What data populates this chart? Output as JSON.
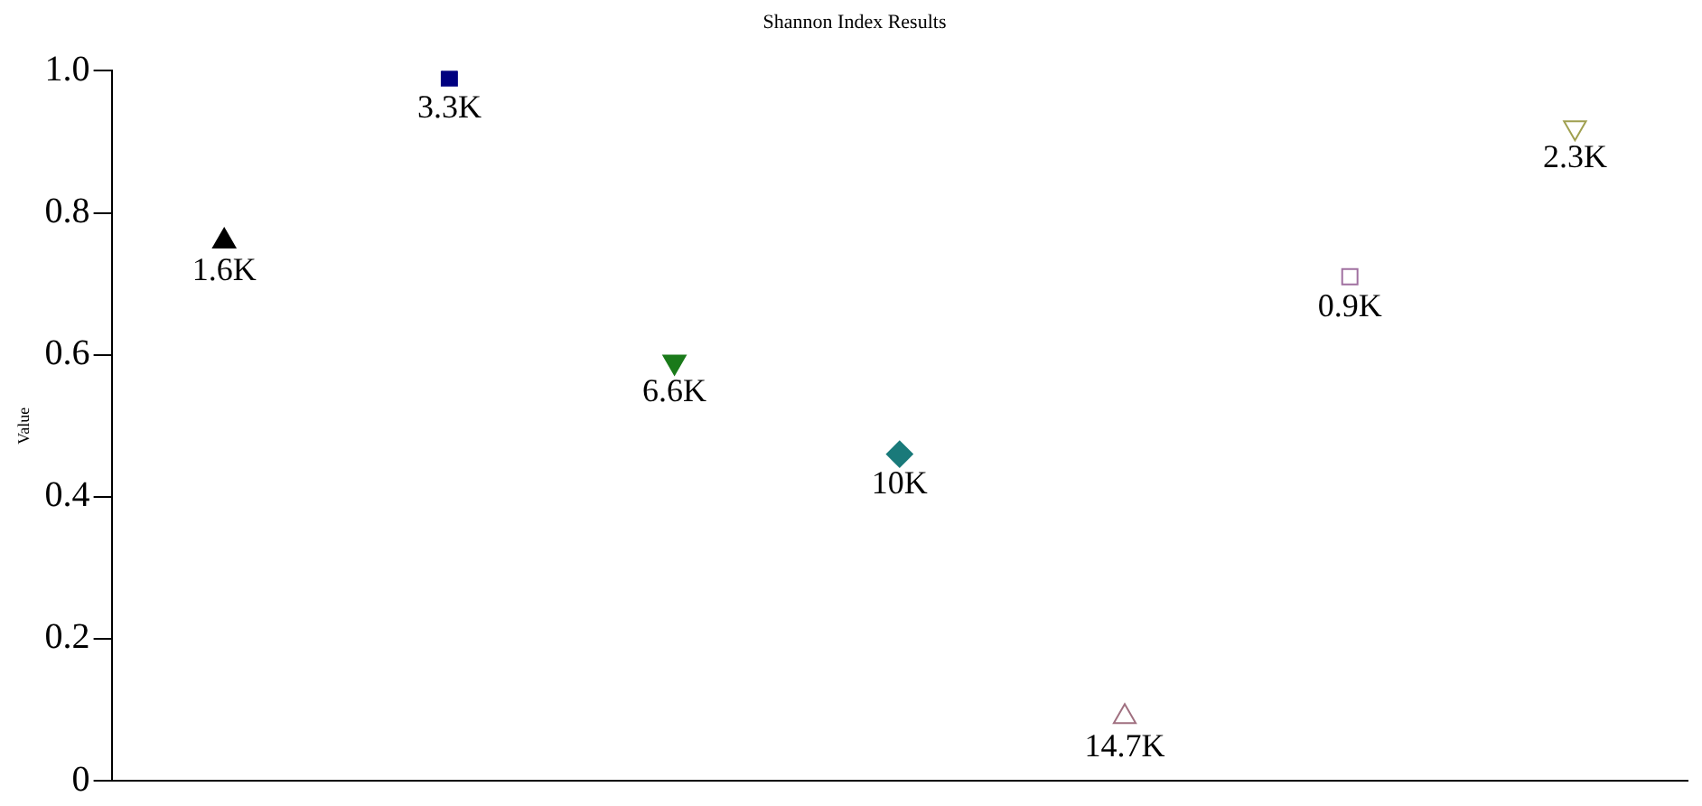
{
  "chart_data": {
    "type": "scatter",
    "title": "Shannon Index Results",
    "ylabel": "Value",
    "categories": [
      null,
      null,
      null,
      null,
      null,
      null,
      null
    ],
    "ylim": [
      0,
      1.0
    ],
    "yticks": [
      0,
      {
        "value": 0.2,
        "label": "0.2"
      },
      {
        "value": 0.4,
        "label": "0.4"
      },
      {
        "value": 0.6,
        "label": "0.6"
      },
      {
        "value": 0.8,
        "label": "0.8"
      },
      {
        "value": 1.0,
        "label": "1.0"
      }
    ],
    "tick_labels": "y",
    "grid": false,
    "legend": false,
    "series": [
      {
        "color": "#000000",
        "marker": "triangle",
        "values": [
          0.76,
          null,
          null,
          null,
          null,
          null,
          null
        ]
      },
      {
        "color": "#000080",
        "marker": "square",
        "values": [
          null,
          0.99,
          null,
          null,
          null,
          null,
          null
        ]
      },
      {
        "color": "#1a7a1a",
        "marker": "triangle-down",
        "values": [
          null,
          null,
          0.59,
          null,
          null,
          null,
          null
        ]
      },
      {
        "color": "#1a7a7a",
        "marker": "diamond",
        "values": [
          null,
          null,
          null,
          0.46,
          null,
          null,
          null
        ]
      },
      {
        "color": "#a07080",
        "marker": "triangle-open",
        "values": [
          null,
          null,
          null,
          null,
          0.09,
          null,
          null
        ]
      },
      {
        "color": "#a070a0",
        "marker": "square-open",
        "values": [
          null,
          null,
          null,
          null,
          null,
          0.71,
          null
        ]
      },
      {
        "color": "#a0a050",
        "marker": "triangle-down-open",
        "values": [
          null,
          null,
          null,
          null,
          null,
          null,
          0.92
        ]
      }
    ],
    "annotations": [
      {
        "text": "1.6K",
        "y": 0.76
      },
      {
        "text": "3.3K",
        "y": 0.99
      },
      {
        "text": "6.6K",
        "y": 0.59
      },
      {
        "text": "10K",
        "y": 0.46
      },
      {
        "text": "14.7K",
        "y": 0.09
      },
      {
        "text": "0.9K",
        "y": 0.71
      },
      {
        "text": "2.3K",
        "y": 0.92
      }
    ]
  }
}
